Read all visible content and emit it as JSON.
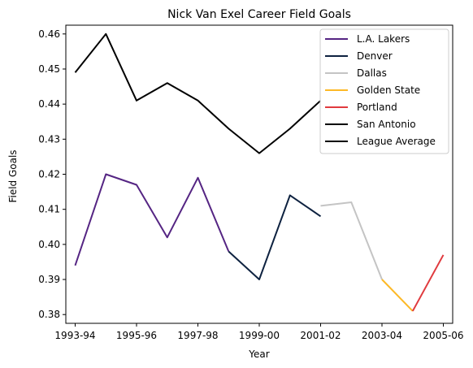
{
  "chart_data": {
    "type": "line",
    "title": "Nick Van Exel Career Field Goals",
    "xlabel": "Year",
    "ylabel": "Field Goals",
    "x_tick_labels": [
      "1993-94",
      "1995-96",
      "1997-98",
      "1999-00",
      "2001-02",
      "2003-04",
      "2005-06"
    ],
    "y_ticks": [
      0.38,
      0.39,
      0.4,
      0.41,
      0.42,
      0.43,
      0.44,
      0.45,
      0.46
    ],
    "y_tick_labels": [
      "0.38",
      "0.39",
      "0.40",
      "0.41",
      "0.42",
      "0.43",
      "0.44",
      "0.45",
      "0.46"
    ],
    "xlim": [
      "1993-94",
      "2005-06"
    ],
    "ylim": [
      0.3775,
      0.4625
    ],
    "grid": false,
    "legend_position": "top-right",
    "series": [
      {
        "name": "L.A. Lakers",
        "color": "#552583",
        "points": [
          [
            "1993-94",
            0.394
          ],
          [
            "1994-95",
            0.42
          ],
          [
            "1995-96",
            0.417
          ],
          [
            "1996-97",
            0.402
          ],
          [
            "1997-98",
            0.419
          ],
          [
            "1998-99",
            0.398
          ]
        ]
      },
      {
        "name": "Denver",
        "color": "#0E2240",
        "points": [
          [
            "1998-99",
            0.398
          ],
          [
            "1999-00",
            0.39
          ],
          [
            "2000-01",
            0.414
          ],
          [
            "2001-02",
            0.408
          ]
        ]
      },
      {
        "name": "Dallas",
        "color": "#C4C4C4",
        "points": [
          [
            "2001-02",
            0.411
          ],
          [
            "2002-03",
            0.412
          ],
          [
            "2003-04",
            0.39
          ]
        ]
      },
      {
        "name": "Golden State",
        "color": "#FDB927",
        "points": [
          [
            "2003-04",
            0.39
          ],
          [
            "2004-05",
            0.381
          ]
        ]
      },
      {
        "name": "Portland",
        "color": "#E03A3E",
        "points": [
          [
            "2004-05",
            0.381
          ],
          [
            "2005-06",
            0.397
          ]
        ]
      },
      {
        "name": "San Antonio",
        "color": "#000000",
        "points": []
      },
      {
        "name": "League Average",
        "color": "#000000",
        "points": [
          [
            "1993-94",
            0.449
          ],
          [
            "1994-95",
            0.46
          ],
          [
            "1995-96",
            0.441
          ],
          [
            "1996-97",
            0.446
          ],
          [
            "1997-98",
            0.441
          ],
          [
            "1998-99",
            0.433
          ],
          [
            "1999-00",
            0.426
          ],
          [
            "2000-01",
            0.433
          ],
          [
            "2001-02",
            0.441
          ]
        ]
      }
    ]
  }
}
